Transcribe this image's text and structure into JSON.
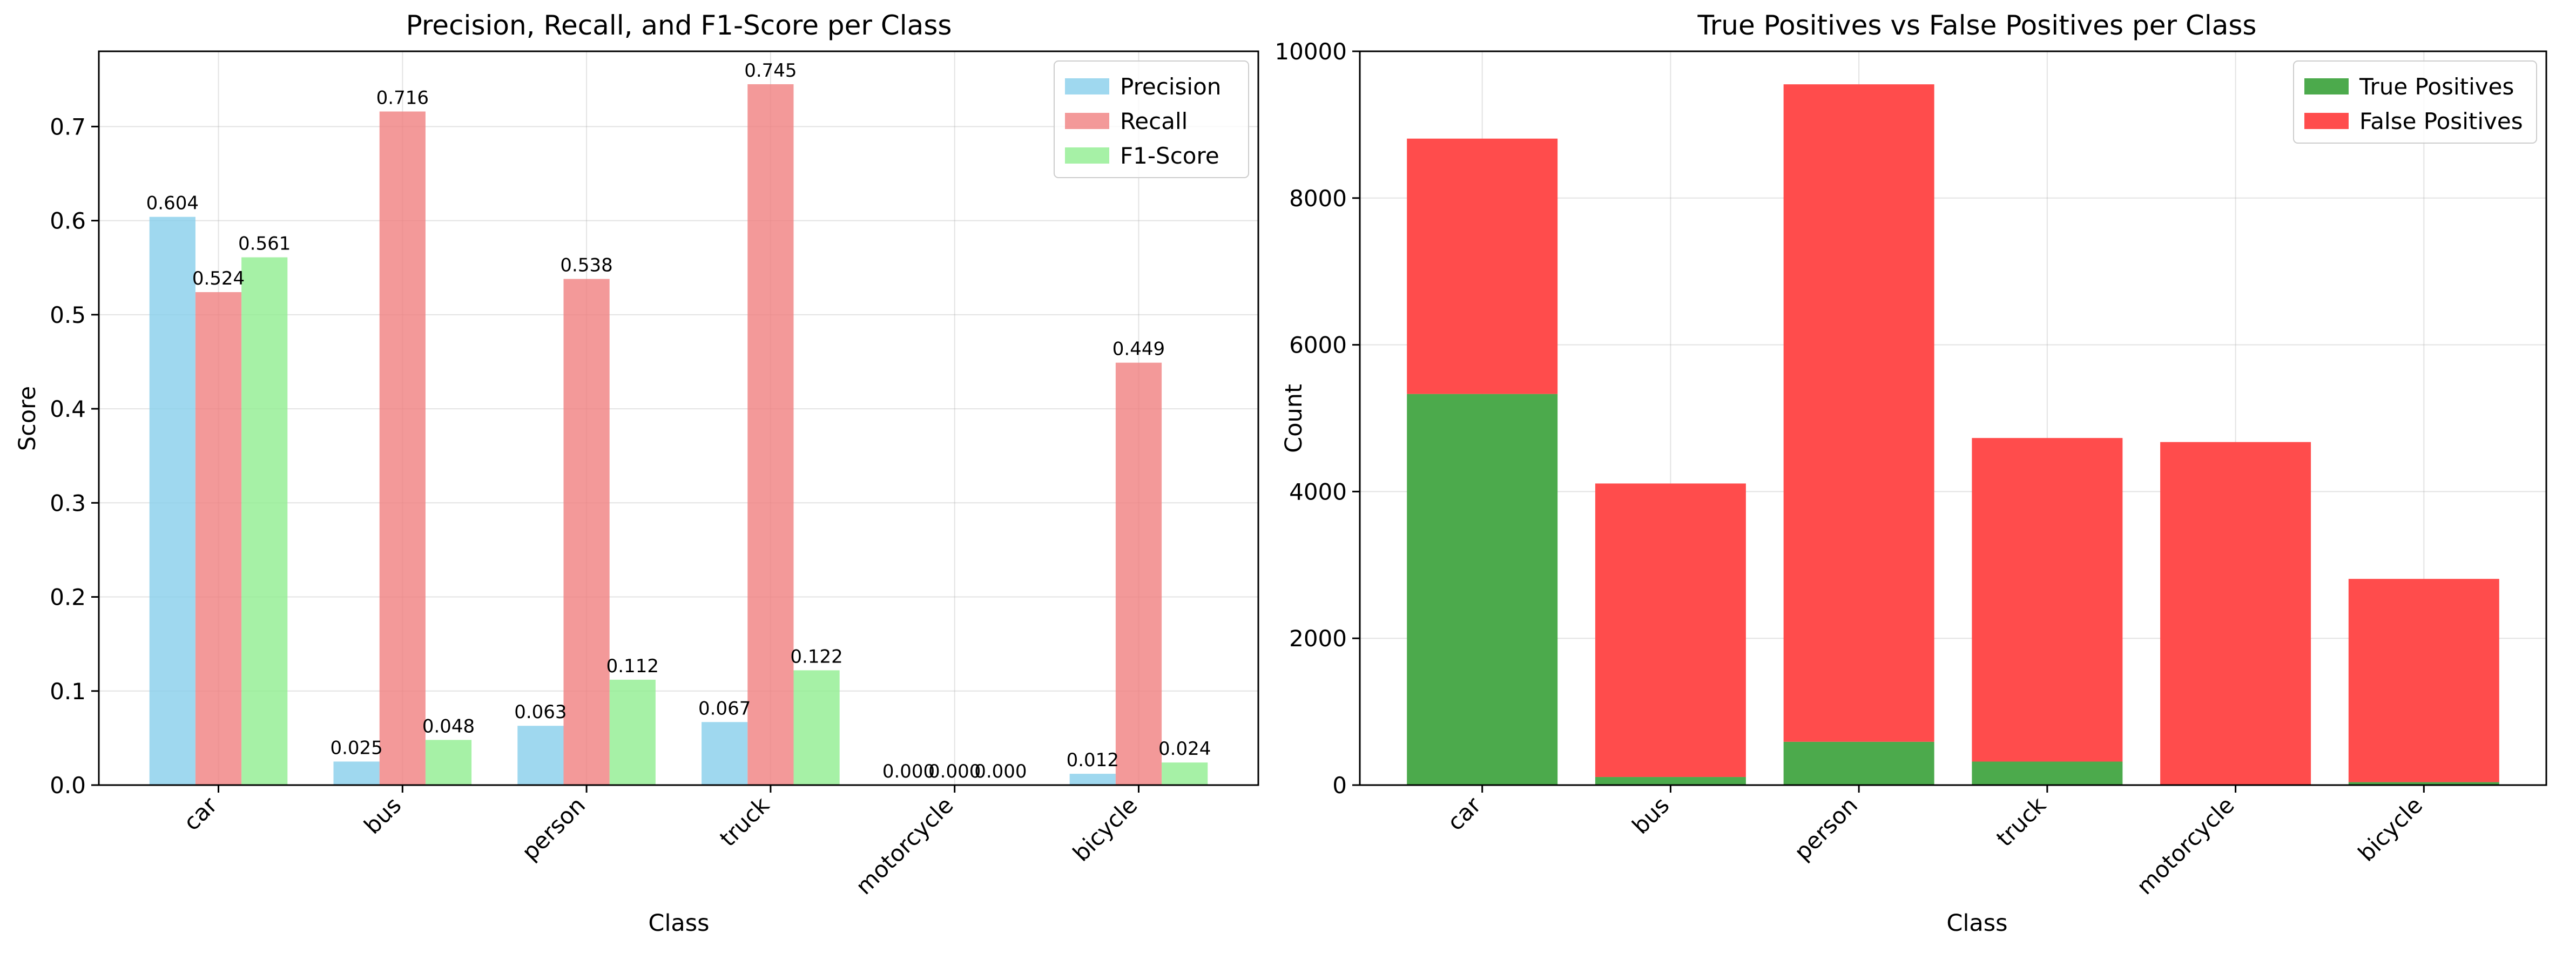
{
  "chart_data": [
    {
      "type": "bar",
      "title": "Precision, Recall, and F1-Score per Class",
      "xlabel": "Class",
      "ylabel": "Score",
      "categories": [
        "car",
        "bus",
        "person",
        "truck",
        "motorcycle",
        "bicycle"
      ],
      "ylim": [
        0,
        0.78
      ],
      "yticks": [
        "0.0",
        "0.1",
        "0.2",
        "0.3",
        "0.4",
        "0.5",
        "0.6",
        "0.7"
      ],
      "grid": true,
      "legend_position": "top-right",
      "series": [
        {
          "name": "Precision",
          "color": "#87ceeb",
          "values": [
            0.604,
            0.025,
            0.063,
            0.067,
            0.0,
            0.012
          ],
          "labels": [
            "0.604",
            "0.025",
            "0.063",
            "0.067",
            "0.000",
            "0.012"
          ]
        },
        {
          "name": "Recall",
          "color": "#f08080",
          "values": [
            0.524,
            0.716,
            0.538,
            0.745,
            0.0,
            0.449
          ],
          "labels": [
            "0.524",
            "0.716",
            "0.538",
            "0.745",
            "0.000",
            "0.449"
          ]
        },
        {
          "name": "F1-Score",
          "color": "#90ee90",
          "values": [
            0.561,
            0.048,
            0.112,
            0.122,
            0.0,
            0.024
          ],
          "labels": [
            "0.561",
            "0.048",
            "0.112",
            "0.122",
            "0.000",
            "0.024"
          ]
        }
      ]
    },
    {
      "type": "bar",
      "stacked": true,
      "title": "True Positives vs False Positives per Class",
      "xlabel": "Class",
      "ylabel": "Count",
      "categories": [
        "car",
        "bus",
        "person",
        "truck",
        "motorcycle",
        "bicycle"
      ],
      "ylim": [
        0,
        10000
      ],
      "yticks": [
        "0",
        "2000",
        "4000",
        "6000",
        "8000",
        "10000"
      ],
      "grid": true,
      "legend_position": "top-right",
      "series": [
        {
          "name": "True Positives",
          "color": "#4caa4c",
          "values": [
            5330,
            110,
            590,
            320,
            5,
            40
          ]
        },
        {
          "name": "False Positives",
          "color": "#ff4c4c",
          "values": [
            3480,
            4000,
            8960,
            4410,
            4670,
            2770
          ]
        }
      ]
    }
  ]
}
